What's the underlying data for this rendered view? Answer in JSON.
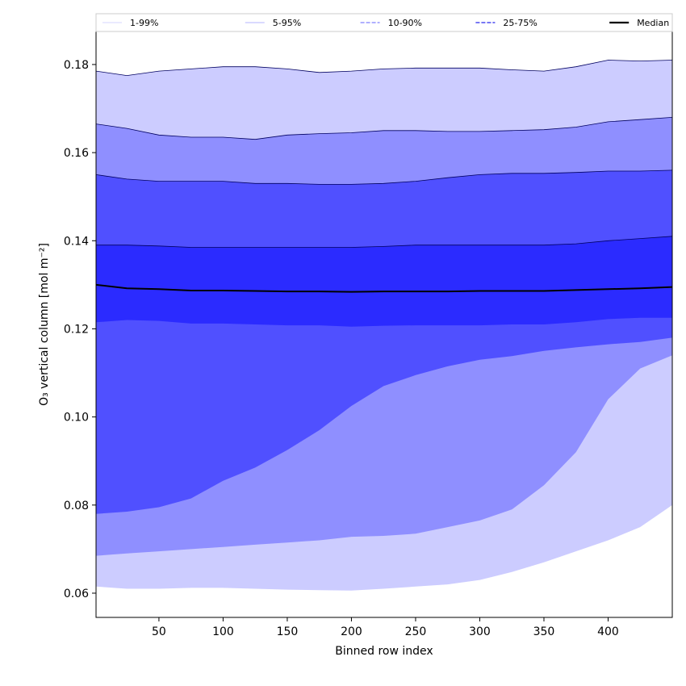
{
  "chart_data": {
    "type": "area",
    "xlabel": "Binned row index",
    "ylabel": "O₃ vertical column [mol m⁻²]",
    "xlim": [
      1,
      450
    ],
    "ylim": [
      0.0545,
      0.1875
    ],
    "xticks": [
      50,
      100,
      150,
      200,
      250,
      300,
      350,
      400
    ],
    "xtick_labels": [
      "50",
      "100",
      "150",
      "200",
      "250",
      "300",
      "350",
      "400"
    ],
    "yticks": [
      0.06,
      0.08,
      0.1,
      0.12,
      0.14,
      0.16,
      0.18
    ],
    "ytick_labels": [
      "0.06",
      "0.08",
      "0.10",
      "0.12",
      "0.14",
      "0.16",
      "0.18"
    ],
    "grid": false,
    "legend_position": "top",
    "legend": [
      {
        "label": "1-99%",
        "style": "solid",
        "color": "#c8c8ff",
        "width": 0.8
      },
      {
        "label": "5-95%",
        "style": "solid",
        "color": "#9d9dff",
        "width": 0.8
      },
      {
        "label": "10-90%",
        "style": "dashed",
        "color": "#8080ff",
        "width": 1.2
      },
      {
        "label": "25-75%",
        "style": "dashed",
        "color": "#4a4af0",
        "width": 1.5
      },
      {
        "label": "Median",
        "style": "solid",
        "color": "#000000",
        "width": 2.2
      }
    ],
    "x": [
      1,
      25,
      50,
      75,
      100,
      125,
      150,
      175,
      200,
      225,
      250,
      275,
      300,
      325,
      350,
      375,
      400,
      425,
      450
    ],
    "bands": [
      {
        "name": "1-99%",
        "color": "#ccccff",
        "lower": [
          0.0615,
          0.061,
          0.061,
          0.0612,
          0.0612,
          0.061,
          0.0608,
          0.0607,
          0.0606,
          0.061,
          0.0615,
          0.062,
          0.063,
          0.0648,
          0.067,
          0.0695,
          0.072,
          0.075,
          0.08
        ],
        "upper": [
          0.1785,
          0.1775,
          0.1785,
          0.179,
          0.1795,
          0.1795,
          0.179,
          0.1782,
          0.1785,
          0.179,
          0.1792,
          0.1792,
          0.1792,
          0.1788,
          0.1785,
          0.1795,
          0.181,
          0.1808,
          0.181
        ]
      },
      {
        "name": "5-95%",
        "color": "#8f8fff",
        "lower": [
          0.0685,
          0.069,
          0.0695,
          0.07,
          0.0705,
          0.071,
          0.0715,
          0.072,
          0.0728,
          0.073,
          0.0735,
          0.075,
          0.0765,
          0.079,
          0.0845,
          0.092,
          0.104,
          0.111,
          0.114
        ],
        "upper": [
          0.1665,
          0.1655,
          0.164,
          0.1635,
          0.1635,
          0.163,
          0.164,
          0.1643,
          0.1645,
          0.165,
          0.165,
          0.1648,
          0.1648,
          0.165,
          0.1652,
          0.1658,
          0.167,
          0.1675,
          0.168
        ]
      },
      {
        "name": "10-90%",
        "color": "#5050ff",
        "lower": [
          0.078,
          0.0785,
          0.0795,
          0.0815,
          0.0855,
          0.0885,
          0.0925,
          0.097,
          0.1025,
          0.107,
          0.1095,
          0.1115,
          0.113,
          0.1138,
          0.115,
          0.1158,
          0.1165,
          0.117,
          0.118
        ],
        "upper": [
          0.155,
          0.154,
          0.1535,
          0.1535,
          0.1535,
          0.153,
          0.153,
          0.1528,
          0.1528,
          0.153,
          0.1535,
          0.1543,
          0.155,
          0.1553,
          0.1553,
          0.1555,
          0.1558,
          0.1558,
          0.156
        ]
      },
      {
        "name": "25-75%",
        "color": "#2b2bff",
        "lower": [
          0.1215,
          0.122,
          0.1218,
          0.1212,
          0.1212,
          0.121,
          0.1208,
          0.1208,
          0.1205,
          0.1207,
          0.1208,
          0.1208,
          0.1208,
          0.121,
          0.121,
          0.1215,
          0.1222,
          0.1225,
          0.1225
        ],
        "upper": [
          0.139,
          0.139,
          0.1388,
          0.1385,
          0.1385,
          0.1385,
          0.1385,
          0.1385,
          0.1385,
          0.1387,
          0.139,
          0.139,
          0.139,
          0.139,
          0.139,
          0.1393,
          0.14,
          0.1405,
          0.141
        ]
      }
    ],
    "median": [
      0.13,
      0.1292,
      0.129,
      0.1287,
      0.1287,
      0.1286,
      0.1285,
      0.1285,
      0.1284,
      0.1285,
      0.1285,
      0.1285,
      0.1286,
      0.1286,
      0.1286,
      0.1288,
      0.129,
      0.1292,
      0.1295
    ]
  }
}
